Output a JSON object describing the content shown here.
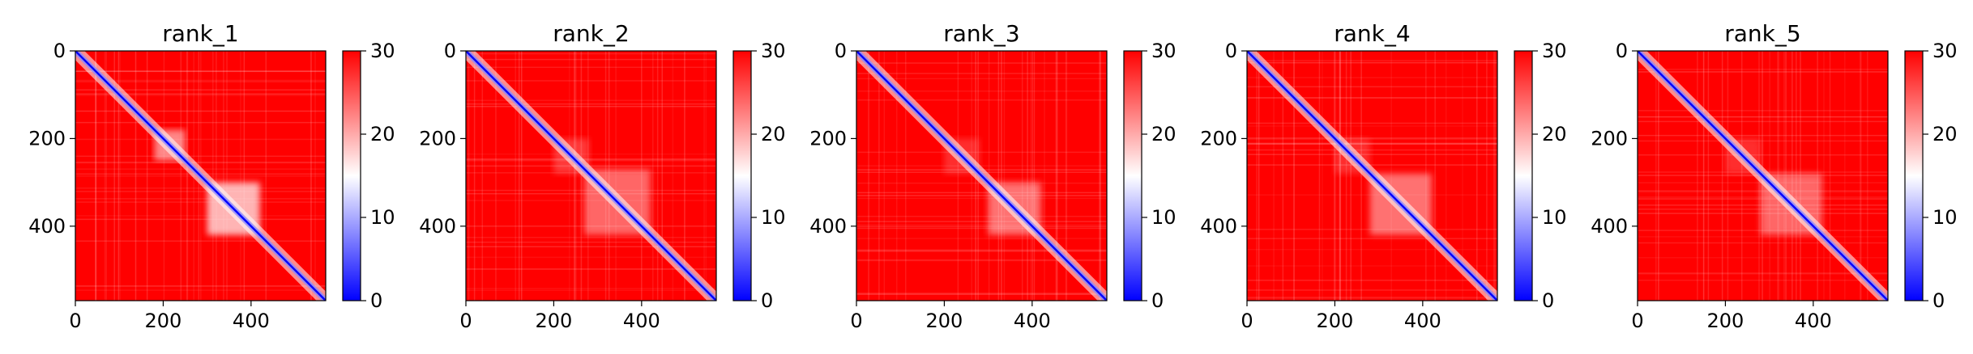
{
  "chart_data": [
    {
      "type": "heatmap",
      "title": "rank_1",
      "matrix_size": 570,
      "xlim": [
        0,
        570
      ],
      "ylim": [
        570,
        0
      ],
      "xticks": [
        0,
        200,
        400
      ],
      "yticks": [
        0,
        200,
        400
      ],
      "colorbar": {
        "range": [
          0,
          30
        ],
        "ticks": [
          0,
          10,
          20,
          30
        ],
        "cmap": "bwr"
      },
      "high_contact_blocks": [
        [
          180,
          250,
          0.6
        ],
        [
          300,
          420,
          0.8
        ]
      ]
    },
    {
      "type": "heatmap",
      "title": "rank_2",
      "matrix_size": 570,
      "xlim": [
        0,
        570
      ],
      "ylim": [
        570,
        0
      ],
      "xticks": [
        0,
        200,
        400
      ],
      "yticks": [
        0,
        200,
        400
      ],
      "colorbar": {
        "range": [
          0,
          30
        ],
        "ticks": [
          0,
          10,
          20,
          30
        ],
        "cmap": "bwr"
      },
      "high_contact_blocks": [
        [
          200,
          280,
          0.25
        ],
        [
          270,
          420,
          0.45
        ]
      ]
    },
    {
      "type": "heatmap",
      "title": "rank_3",
      "matrix_size": 570,
      "xlim": [
        0,
        570
      ],
      "ylim": [
        570,
        0
      ],
      "xticks": [
        0,
        200,
        400
      ],
      "yticks": [
        0,
        200,
        400
      ],
      "colorbar": {
        "range": [
          0,
          30
        ],
        "ticks": [
          0,
          10,
          20,
          30
        ],
        "cmap": "bwr"
      },
      "high_contact_blocks": [
        [
          200,
          280,
          0.2
        ],
        [
          300,
          420,
          0.5
        ]
      ]
    },
    {
      "type": "heatmap",
      "title": "rank_4",
      "matrix_size": 570,
      "xlim": [
        0,
        570
      ],
      "ylim": [
        570,
        0
      ],
      "xticks": [
        0,
        200,
        400
      ],
      "yticks": [
        0,
        200,
        400
      ],
      "colorbar": {
        "range": [
          0,
          30
        ],
        "ticks": [
          0,
          10,
          20,
          30
        ],
        "cmap": "bwr"
      },
      "high_contact_blocks": [
        [
          200,
          280,
          0.2
        ],
        [
          280,
          420,
          0.5
        ]
      ]
    },
    {
      "type": "heatmap",
      "title": "rank_5",
      "matrix_size": 570,
      "xlim": [
        0,
        570
      ],
      "ylim": [
        570,
        0
      ],
      "xticks": [
        0,
        200,
        400
      ],
      "yticks": [
        0,
        200,
        400
      ],
      "colorbar": {
        "range": [
          0,
          30
        ],
        "ticks": [
          0,
          10,
          20,
          30
        ],
        "cmap": "bwr"
      },
      "high_contact_blocks": [
        [
          200,
          280,
          0.2
        ],
        [
          280,
          420,
          0.45
        ]
      ]
    }
  ]
}
